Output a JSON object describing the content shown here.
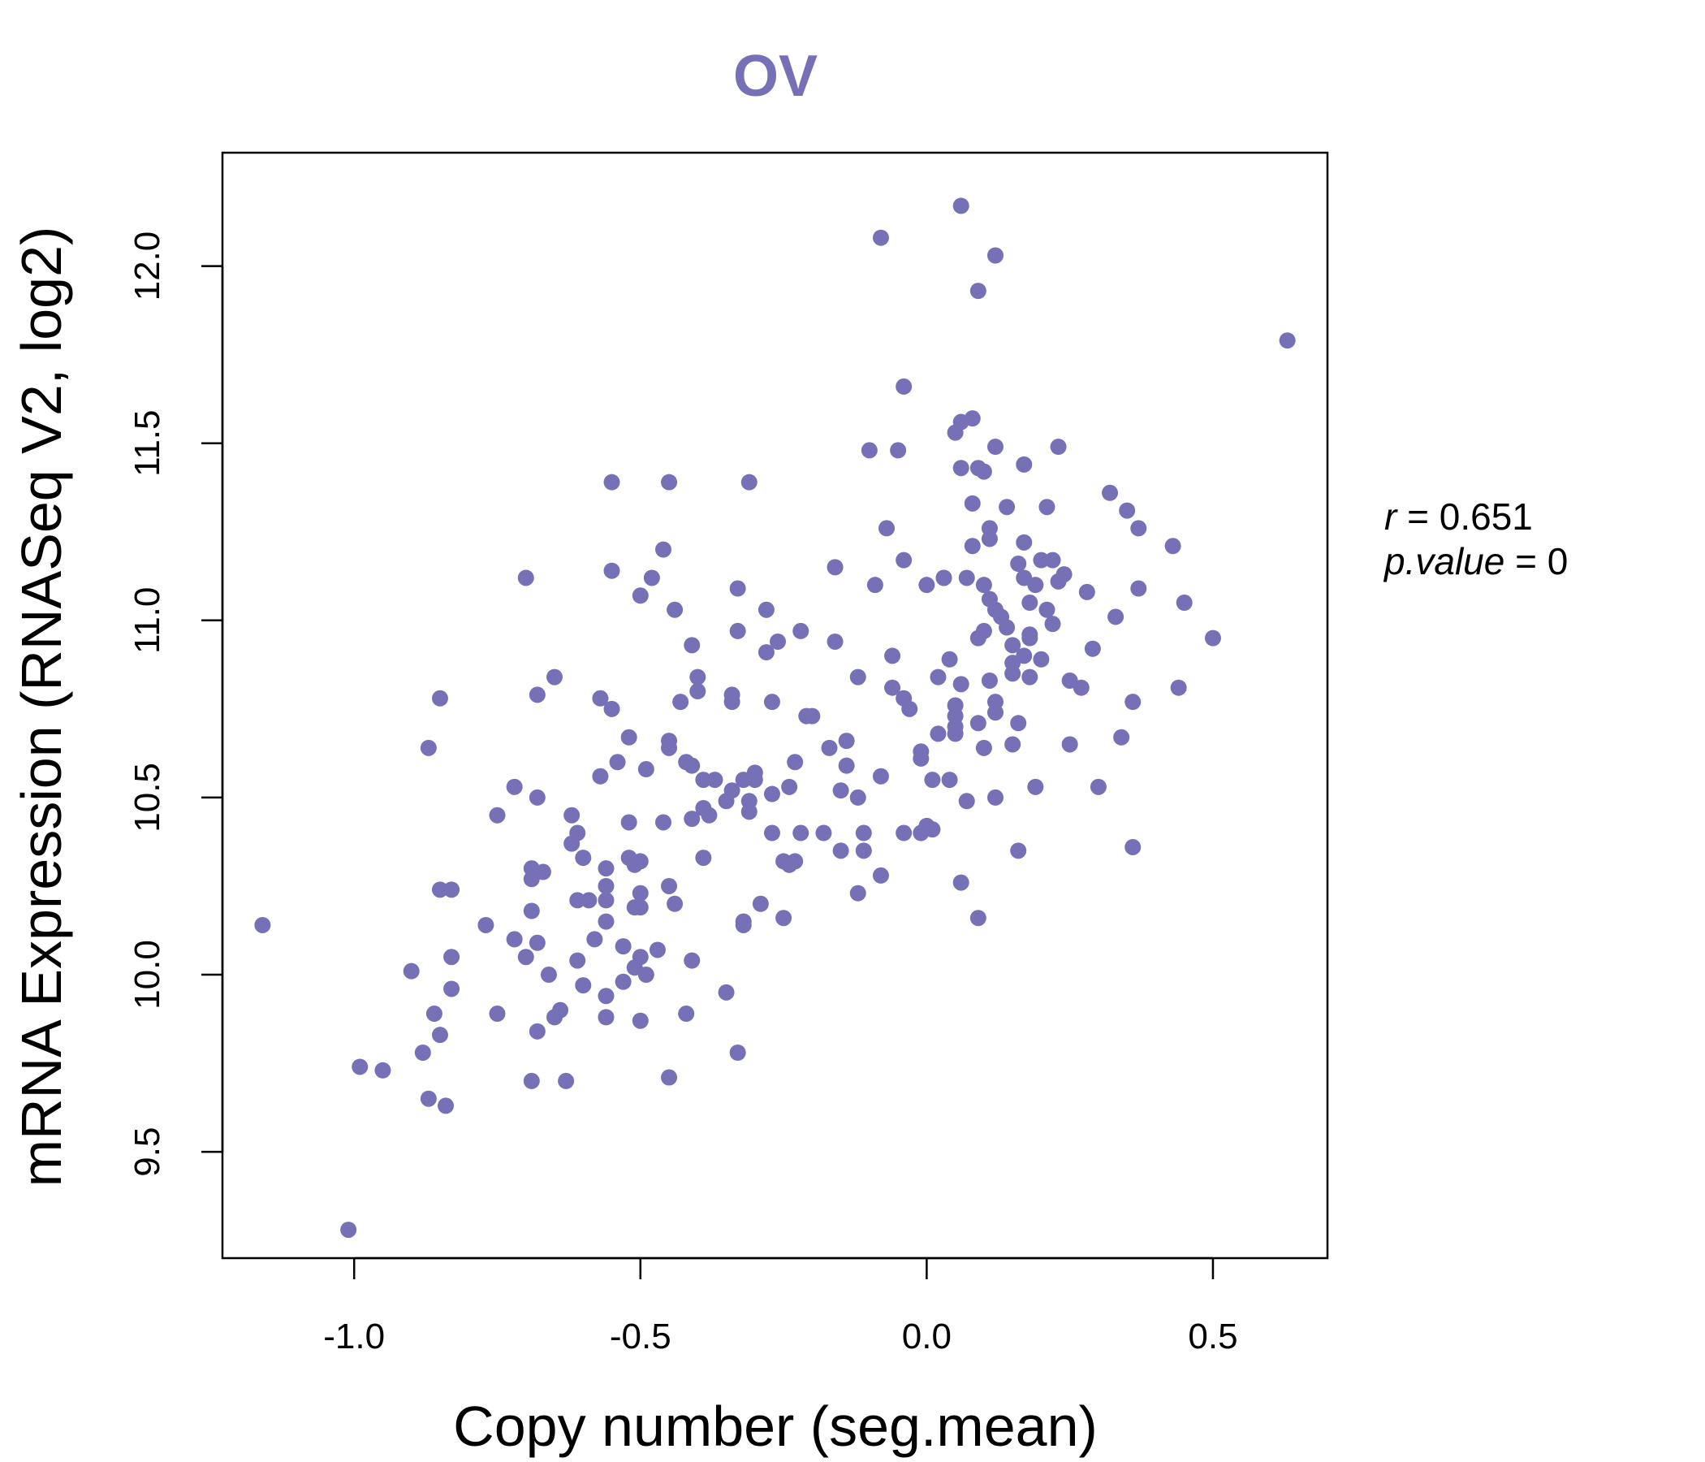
{
  "chart_data": {
    "type": "scatter",
    "title": "OV",
    "xlabel": "Copy number (seg.mean)",
    "ylabel": "mRNA Expression (RNASeq V2, log2)",
    "xlim": [
      -1.23,
      0.7
    ],
    "ylim": [
      9.2,
      12.32
    ],
    "x_ticks": [
      -1.0,
      -0.5,
      0.0,
      0.5
    ],
    "x_tick_labels": [
      "-1.0",
      "-0.5",
      "0.0",
      "0.5"
    ],
    "y_ticks": [
      9.5,
      10.0,
      10.5,
      11.0,
      11.5,
      12.0
    ],
    "y_tick_labels": [
      "9.5",
      "10.0",
      "10.5",
      "11.0",
      "11.5",
      "12.0"
    ],
    "grid": false,
    "point_color": "#7670b6",
    "stats": {
      "r_symbol": "r",
      "r_value": "0.651",
      "p_symbol": "p.value",
      "p_value": "0"
    },
    "points": [
      [
        -1.16,
        10.14
      ],
      [
        -1.01,
        9.28
      ],
      [
        -0.99,
        9.74
      ],
      [
        -0.95,
        9.73
      ],
      [
        -0.9,
        10.01
      ],
      [
        -0.88,
        9.78
      ],
      [
        -0.87,
        9.65
      ],
      [
        -0.87,
        10.64
      ],
      [
        -0.86,
        9.89
      ],
      [
        -0.85,
        10.78
      ],
      [
        -0.85,
        9.83
      ],
      [
        -0.85,
        10.24
      ],
      [
        -0.84,
        9.63
      ],
      [
        -0.83,
        10.05
      ],
      [
        -0.83,
        9.96
      ],
      [
        -0.83,
        10.24
      ],
      [
        -0.77,
        10.14
      ],
      [
        -0.75,
        10.45
      ],
      [
        -0.75,
        9.89
      ],
      [
        -0.72,
        10.53
      ],
      [
        -0.72,
        10.1
      ],
      [
        -0.7,
        10.05
      ],
      [
        -0.7,
        11.12
      ],
      [
        -0.69,
        9.7
      ],
      [
        -0.69,
        10.27
      ],
      [
        -0.69,
        10.18
      ],
      [
        -0.69,
        10.3
      ],
      [
        -0.68,
        9.84
      ],
      [
        -0.68,
        10.09
      ],
      [
        -0.68,
        10.5
      ],
      [
        -0.68,
        10.79
      ],
      [
        -0.67,
        10.29
      ],
      [
        -0.66,
        10.0
      ],
      [
        -0.65,
        9.88
      ],
      [
        -0.65,
        10.84
      ],
      [
        -0.64,
        9.9
      ],
      [
        -0.63,
        9.7
      ],
      [
        -0.62,
        10.45
      ],
      [
        -0.62,
        10.37
      ],
      [
        -0.61,
        10.04
      ],
      [
        -0.61,
        10.21
      ],
      [
        -0.61,
        10.4
      ],
      [
        -0.6,
        10.33
      ],
      [
        -0.6,
        9.97
      ],
      [
        -0.59,
        10.21
      ],
      [
        -0.58,
        10.1
      ],
      [
        -0.57,
        10.56
      ],
      [
        -0.57,
        10.78
      ],
      [
        -0.56,
        9.88
      ],
      [
        -0.56,
        9.94
      ],
      [
        -0.56,
        10.15
      ],
      [
        -0.56,
        10.21
      ],
      [
        -0.56,
        10.25
      ],
      [
        -0.56,
        10.3
      ],
      [
        -0.55,
        10.75
      ],
      [
        -0.55,
        11.39
      ],
      [
        -0.55,
        11.14
      ],
      [
        -0.54,
        10.6
      ],
      [
        -0.53,
        9.98
      ],
      [
        -0.53,
        10.08
      ],
      [
        -0.52,
        10.67
      ],
      [
        -0.52,
        10.33
      ],
      [
        -0.52,
        10.43
      ],
      [
        -0.51,
        10.02
      ],
      [
        -0.51,
        10.19
      ],
      [
        -0.51,
        10.31
      ],
      [
        -0.5,
        9.87
      ],
      [
        -0.5,
        10.05
      ],
      [
        -0.5,
        11.07
      ],
      [
        -0.5,
        10.32
      ],
      [
        -0.5,
        10.19
      ],
      [
        -0.5,
        10.23
      ],
      [
        -0.49,
        10.0
      ],
      [
        -0.49,
        10.58
      ],
      [
        -0.48,
        11.12
      ],
      [
        -0.47,
        10.07
      ],
      [
        -0.46,
        10.43
      ],
      [
        -0.46,
        11.2
      ],
      [
        -0.45,
        10.66
      ],
      [
        -0.45,
        10.64
      ],
      [
        -0.45,
        10.25
      ],
      [
        -0.45,
        9.71
      ],
      [
        -0.45,
        11.39
      ],
      [
        -0.44,
        10.2
      ],
      [
        -0.44,
        11.03
      ],
      [
        -0.43,
        10.77
      ],
      [
        -0.42,
        10.6
      ],
      [
        -0.42,
        9.89
      ],
      [
        -0.41,
        10.59
      ],
      [
        -0.41,
        10.04
      ],
      [
        -0.41,
        10.44
      ],
      [
        -0.41,
        10.93
      ],
      [
        -0.4,
        10.84
      ],
      [
        -0.4,
        10.8
      ],
      [
        -0.39,
        10.55
      ],
      [
        -0.39,
        10.33
      ],
      [
        -0.39,
        10.47
      ],
      [
        -0.38,
        10.45
      ],
      [
        -0.37,
        10.55
      ],
      [
        -0.35,
        9.95
      ],
      [
        -0.35,
        10.49
      ],
      [
        -0.34,
        10.52
      ],
      [
        -0.34,
        10.79
      ],
      [
        -0.34,
        10.77
      ],
      [
        -0.33,
        10.97
      ],
      [
        -0.33,
        11.09
      ],
      [
        -0.33,
        9.78
      ],
      [
        -0.32,
        10.14
      ],
      [
        -0.32,
        10.15
      ],
      [
        -0.32,
        10.55
      ],
      [
        -0.31,
        10.49
      ],
      [
        -0.31,
        10.46
      ],
      [
        -0.31,
        11.39
      ],
      [
        -0.3,
        10.55
      ],
      [
        -0.3,
        10.57
      ],
      [
        -0.29,
        10.2
      ],
      [
        -0.28,
        10.91
      ],
      [
        -0.28,
        11.03
      ],
      [
        -0.27,
        10.77
      ],
      [
        -0.27,
        10.51
      ],
      [
        -0.27,
        10.4
      ],
      [
        -0.26,
        10.94
      ],
      [
        -0.25,
        10.16
      ],
      [
        -0.25,
        10.32
      ],
      [
        -0.24,
        10.53
      ],
      [
        -0.24,
        10.31
      ],
      [
        -0.23,
        10.32
      ],
      [
        -0.23,
        10.6
      ],
      [
        -0.22,
        10.97
      ],
      [
        -0.22,
        10.4
      ],
      [
        -0.21,
        10.73
      ],
      [
        -0.2,
        10.73
      ],
      [
        -0.18,
        10.4
      ],
      [
        -0.17,
        10.64
      ],
      [
        -0.16,
        10.94
      ],
      [
        -0.16,
        11.15
      ],
      [
        -0.15,
        10.52
      ],
      [
        -0.15,
        10.35
      ],
      [
        -0.14,
        10.66
      ],
      [
        -0.14,
        10.59
      ],
      [
        -0.12,
        10.23
      ],
      [
        -0.12,
        10.84
      ],
      [
        -0.12,
        10.5
      ],
      [
        -0.11,
        10.4
      ],
      [
        -0.11,
        10.35
      ],
      [
        -0.1,
        11.48
      ],
      [
        -0.09,
        11.1
      ],
      [
        -0.08,
        10.56
      ],
      [
        -0.08,
        12.08
      ],
      [
        -0.08,
        10.28
      ],
      [
        -0.07,
        11.26
      ],
      [
        -0.06,
        10.81
      ],
      [
        -0.06,
        10.9
      ],
      [
        -0.05,
        11.48
      ],
      [
        -0.04,
        10.78
      ],
      [
        -0.04,
        11.17
      ],
      [
        -0.04,
        10.4
      ],
      [
        -0.04,
        11.66
      ],
      [
        -0.03,
        10.75
      ],
      [
        -0.01,
        10.61
      ],
      [
        -0.01,
        10.63
      ],
      [
        -0.01,
        10.4
      ],
      [
        0.0,
        10.42
      ],
      [
        0.0,
        11.1
      ],
      [
        0.01,
        10.55
      ],
      [
        0.01,
        10.41
      ],
      [
        0.02,
        10.68
      ],
      [
        0.02,
        10.84
      ],
      [
        0.03,
        11.12
      ],
      [
        0.03,
        11.12
      ],
      [
        0.04,
        10.55
      ],
      [
        0.04,
        10.89
      ],
      [
        0.05,
        10.76
      ],
      [
        0.05,
        10.7
      ],
      [
        0.05,
        10.68
      ],
      [
        0.05,
        10.73
      ],
      [
        0.05,
        11.53
      ],
      [
        0.06,
        11.43
      ],
      [
        0.06,
        11.56
      ],
      [
        0.06,
        10.26
      ],
      [
        0.06,
        12.17
      ],
      [
        0.06,
        10.82
      ],
      [
        0.07,
        10.49
      ],
      [
        0.07,
        11.12
      ],
      [
        0.08,
        11.57
      ],
      [
        0.08,
        11.33
      ],
      [
        0.08,
        11.21
      ],
      [
        0.09,
        10.16
      ],
      [
        0.09,
        10.95
      ],
      [
        0.09,
        10.71
      ],
      [
        0.09,
        11.93
      ],
      [
        0.09,
        11.43
      ],
      [
        0.1,
        10.64
      ],
      [
        0.1,
        10.97
      ],
      [
        0.1,
        11.42
      ],
      [
        0.1,
        11.1
      ],
      [
        0.11,
        10.83
      ],
      [
        0.11,
        11.06
      ],
      [
        0.11,
        11.26
      ],
      [
        0.11,
        11.23
      ],
      [
        0.12,
        11.03
      ],
      [
        0.12,
        10.77
      ],
      [
        0.12,
        10.74
      ],
      [
        0.12,
        10.5
      ],
      [
        0.12,
        11.49
      ],
      [
        0.12,
        12.03
      ],
      [
        0.13,
        11.01
      ],
      [
        0.14,
        11.32
      ],
      [
        0.14,
        10.98
      ],
      [
        0.15,
        10.88
      ],
      [
        0.15,
        10.93
      ],
      [
        0.15,
        10.65
      ],
      [
        0.15,
        10.85
      ],
      [
        0.16,
        10.71
      ],
      [
        0.16,
        11.16
      ],
      [
        0.16,
        10.35
      ],
      [
        0.17,
        11.22
      ],
      [
        0.17,
        11.44
      ],
      [
        0.17,
        11.12
      ],
      [
        0.17,
        10.9
      ],
      [
        0.18,
        10.84
      ],
      [
        0.18,
        10.95
      ],
      [
        0.18,
        11.05
      ],
      [
        0.18,
        10.96
      ],
      [
        0.19,
        11.1
      ],
      [
        0.19,
        10.53
      ],
      [
        0.2,
        10.89
      ],
      [
        0.2,
        11.17
      ],
      [
        0.21,
        11.32
      ],
      [
        0.21,
        11.03
      ],
      [
        0.22,
        10.99
      ],
      [
        0.22,
        11.17
      ],
      [
        0.23,
        11.11
      ],
      [
        0.23,
        11.49
      ],
      [
        0.24,
        11.13
      ],
      [
        0.25,
        10.65
      ],
      [
        0.25,
        10.83
      ],
      [
        0.27,
        10.81
      ],
      [
        0.28,
        11.08
      ],
      [
        0.29,
        10.92
      ],
      [
        0.3,
        10.53
      ],
      [
        0.32,
        11.36
      ],
      [
        0.33,
        11.01
      ],
      [
        0.34,
        10.67
      ],
      [
        0.35,
        11.31
      ],
      [
        0.36,
        10.77
      ],
      [
        0.36,
        10.36
      ],
      [
        0.37,
        11.26
      ],
      [
        0.37,
        11.09
      ],
      [
        0.43,
        11.21
      ],
      [
        0.44,
        10.81
      ],
      [
        0.45,
        11.05
      ],
      [
        0.5,
        10.95
      ],
      [
        0.63,
        11.79
      ]
    ]
  }
}
